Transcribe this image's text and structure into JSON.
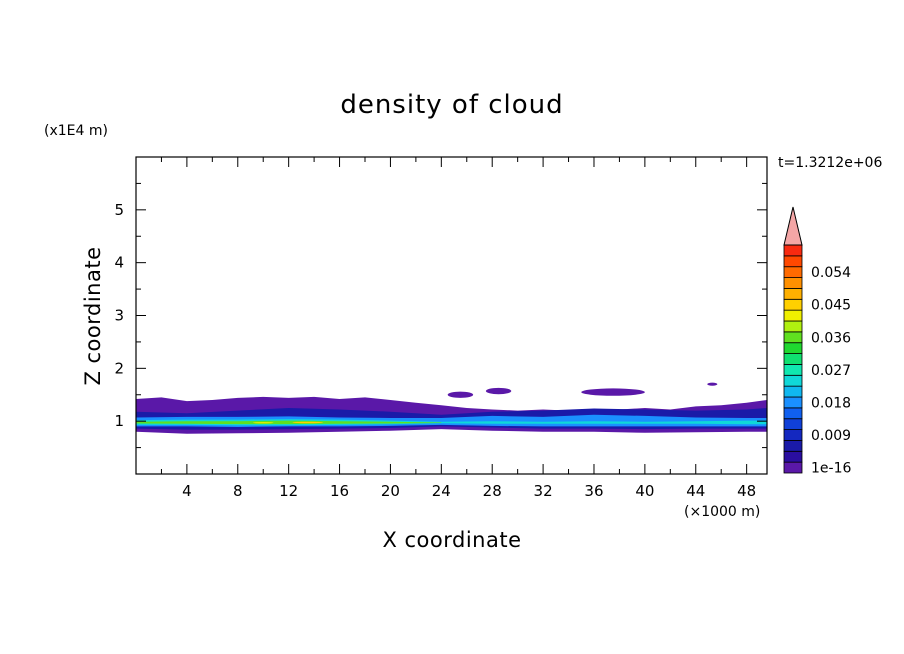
{
  "chart_data": {
    "type": "heatmap",
    "title": "density of cloud",
    "xlabel": "X coordinate",
    "ylabel": "Z coordinate",
    "x_unit": "(×1000 m)",
    "y_unit": "(x1E4 m)",
    "time_label": "t=1.3212e+06",
    "xlim": [
      0,
      49.6
    ],
    "ylim": [
      0,
      6
    ],
    "x_ticks": [
      "4",
      "8",
      "12",
      "16",
      "20",
      "24",
      "28",
      "32",
      "36",
      "40",
      "44",
      "48"
    ],
    "x_tick_values": [
      4,
      8,
      12,
      16,
      20,
      24,
      28,
      32,
      36,
      40,
      44,
      48
    ],
    "y_ticks": [
      "1",
      "2",
      "3",
      "4",
      "5"
    ],
    "y_tick_values": [
      1,
      2,
      3,
      4,
      5
    ],
    "colorbar": {
      "labels": [
        "1e-16",
        "0.009",
        "0.018",
        "0.027",
        "0.036",
        "0.045",
        "0.054"
      ],
      "label_levels": [
        0,
        3,
        6,
        9,
        12,
        15,
        18
      ],
      "colors": [
        "#5a18a8",
        "#2a0ea0",
        "#1a1aa8",
        "#1428c0",
        "#1040d8",
        "#1060f0",
        "#1a90ff",
        "#10b8f0",
        "#10d8d8",
        "#10e8b0",
        "#10e070",
        "#20d830",
        "#60e020",
        "#b0f010",
        "#f0f000",
        "#ffd000",
        "#ffb000",
        "#ff9000",
        "#ff6a00",
        "#ff4800",
        "#f82a10"
      ],
      "extend_color": "#f4a6a6"
    },
    "layers": [
      {
        "name": "outer-cloud",
        "color": "#5a18a8",
        "top": [
          [
            0,
            1.42
          ],
          [
            2,
            1.45
          ],
          [
            4,
            1.38
          ],
          [
            6,
            1.4
          ],
          [
            8,
            1.44
          ],
          [
            10,
            1.46
          ],
          [
            12,
            1.44
          ],
          [
            14,
            1.46
          ],
          [
            16,
            1.42
          ],
          [
            18,
            1.45
          ],
          [
            20,
            1.4
          ],
          [
            22,
            1.35
          ],
          [
            24,
            1.3
          ],
          [
            26,
            1.25
          ],
          [
            28,
            1.22
          ],
          [
            30,
            1.2
          ],
          [
            32,
            1.22
          ],
          [
            34,
            1.2
          ],
          [
            36,
            1.2
          ],
          [
            38,
            1.22
          ],
          [
            40,
            1.25
          ],
          [
            42,
            1.22
          ],
          [
            44,
            1.28
          ],
          [
            46,
            1.3
          ],
          [
            48,
            1.35
          ],
          [
            49.6,
            1.4
          ]
        ],
        "bottom": [
          [
            0,
            0.8
          ],
          [
            2,
            0.78
          ],
          [
            4,
            0.76
          ],
          [
            8,
            0.77
          ],
          [
            12,
            0.78
          ],
          [
            16,
            0.8
          ],
          [
            20,
            0.82
          ],
          [
            24,
            0.85
          ],
          [
            28,
            0.82
          ],
          [
            32,
            0.8
          ],
          [
            36,
            0.8
          ],
          [
            40,
            0.78
          ],
          [
            44,
            0.79
          ],
          [
            48,
            0.8
          ],
          [
            49.6,
            0.8
          ]
        ]
      },
      {
        "name": "mid-blue",
        "color": "#1a1aa8",
        "top": [
          [
            0,
            1.18
          ],
          [
            4,
            1.15
          ],
          [
            8,
            1.2
          ],
          [
            12,
            1.25
          ],
          [
            16,
            1.22
          ],
          [
            20,
            1.18
          ],
          [
            24,
            1.12
          ],
          [
            28,
            1.18
          ],
          [
            32,
            1.2
          ],
          [
            36,
            1.24
          ],
          [
            40,
            1.22
          ],
          [
            44,
            1.2
          ],
          [
            48,
            1.22
          ],
          [
            49.6,
            1.25
          ]
        ],
        "bottom": [
          [
            0,
            0.86
          ],
          [
            4,
            0.84
          ],
          [
            8,
            0.84
          ],
          [
            12,
            0.85
          ],
          [
            16,
            0.86
          ],
          [
            20,
            0.87
          ],
          [
            24,
            0.9
          ],
          [
            28,
            0.88
          ],
          [
            32,
            0.86
          ],
          [
            36,
            0.86
          ],
          [
            40,
            0.85
          ],
          [
            44,
            0.86
          ],
          [
            48,
            0.86
          ],
          [
            49.6,
            0.86
          ]
        ]
      },
      {
        "name": "light-blue",
        "color": "#1a90ff",
        "top": [
          [
            0,
            1.07
          ],
          [
            4,
            1.08
          ],
          [
            8,
            1.08
          ],
          [
            12,
            1.09
          ],
          [
            16,
            1.07
          ],
          [
            20,
            1.06
          ],
          [
            24,
            1.06
          ],
          [
            28,
            1.1
          ],
          [
            32,
            1.08
          ],
          [
            36,
            1.12
          ],
          [
            40,
            1.1
          ],
          [
            44,
            1.07
          ],
          [
            48,
            1.06
          ],
          [
            49.6,
            1.06
          ]
        ],
        "bottom": [
          [
            0,
            0.9
          ],
          [
            4,
            0.9
          ],
          [
            8,
            0.89
          ],
          [
            12,
            0.9
          ],
          [
            16,
            0.9
          ],
          [
            20,
            0.91
          ],
          [
            24,
            0.93
          ],
          [
            28,
            0.91
          ],
          [
            32,
            0.9
          ],
          [
            36,
            0.9
          ],
          [
            40,
            0.9
          ],
          [
            44,
            0.9
          ],
          [
            48,
            0.9
          ],
          [
            49.6,
            0.9
          ]
        ]
      },
      {
        "name": "cyan-core",
        "color": "#10d8d8",
        "top": [
          [
            0,
            1.02
          ],
          [
            4,
            1.03
          ],
          [
            8,
            1.03
          ],
          [
            12,
            1.04
          ],
          [
            16,
            1.03
          ],
          [
            20,
            1.01
          ],
          [
            24,
            0.99
          ],
          [
            28,
            1.0
          ],
          [
            32,
            0.99
          ],
          [
            36,
            1.0
          ],
          [
            40,
            0.99
          ],
          [
            44,
            1.0
          ],
          [
            48,
            1.01
          ],
          [
            49.6,
            1.01
          ]
        ],
        "bottom": [
          [
            0,
            0.93
          ],
          [
            4,
            0.93
          ],
          [
            8,
            0.92
          ],
          [
            12,
            0.92
          ],
          [
            16,
            0.93
          ],
          [
            20,
            0.94
          ],
          [
            24,
            0.96
          ],
          [
            28,
            0.95
          ],
          [
            32,
            0.95
          ],
          [
            36,
            0.95
          ],
          [
            40,
            0.95
          ],
          [
            44,
            0.95
          ],
          [
            48,
            0.94
          ],
          [
            49.6,
            0.94
          ]
        ]
      },
      {
        "name": "green-core",
        "color": "#60e020",
        "top": [
          [
            0,
            0.99
          ],
          [
            4,
            1.0
          ],
          [
            8,
            1.0
          ],
          [
            12,
            1.01
          ],
          [
            16,
            1.0
          ],
          [
            20,
            0.99
          ],
          [
            24,
            0.975
          ]
        ],
        "bottom": [
          [
            0,
            0.955
          ],
          [
            4,
            0.95
          ],
          [
            8,
            0.945
          ],
          [
            12,
            0.945
          ],
          [
            16,
            0.95
          ],
          [
            20,
            0.955
          ],
          [
            24,
            0.965
          ]
        ]
      }
    ],
    "patches": [
      {
        "color": "#5a18a8",
        "cx": 25.5,
        "cy": 1.5,
        "rx": 1.0,
        "ry": 0.06
      },
      {
        "color": "#5a18a8",
        "cx": 28.5,
        "cy": 1.57,
        "rx": 1.0,
        "ry": 0.06
      },
      {
        "color": "#5a18a8",
        "cx": 37.5,
        "cy": 1.55,
        "rx": 2.5,
        "ry": 0.07
      },
      {
        "color": "#5a18a8",
        "cx": 45.3,
        "cy": 1.7,
        "rx": 0.4,
        "ry": 0.03
      },
      {
        "color": "#ffd000",
        "cx": 13.5,
        "cy": 0.975,
        "rx": 1.2,
        "ry": 0.015
      },
      {
        "color": "#f0f000",
        "cx": 10.0,
        "cy": 0.97,
        "rx": 0.8,
        "ry": 0.012
      }
    ]
  }
}
